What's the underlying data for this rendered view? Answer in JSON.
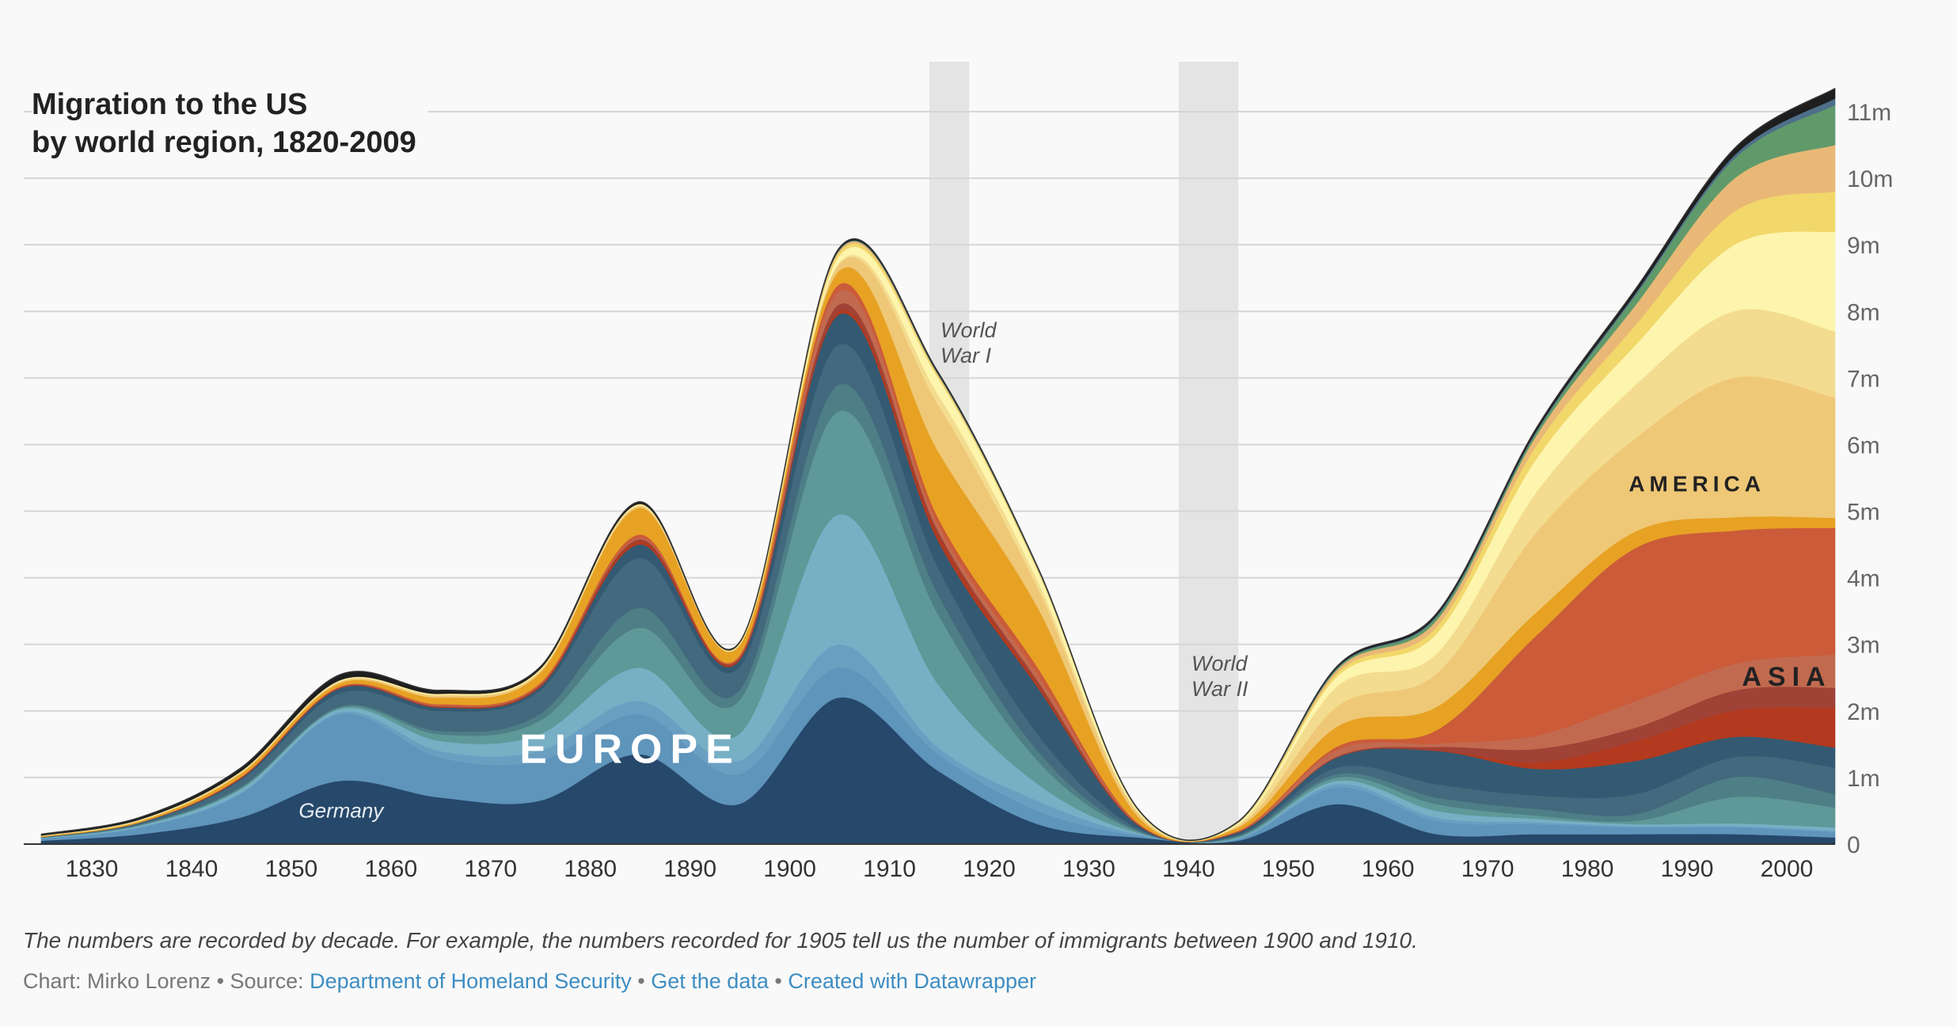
{
  "title": {
    "line1": "Migration to the US",
    "line2": "by world region, 1820-2009"
  },
  "note": "The numbers are recorded by decade. For example, the numbers recorded for 1905 tell us the number of immigrants between 1900 and 1910.",
  "byline": {
    "prefix": "Chart: Mirko Lorenz • Source: ",
    "source_link": "Department of Homeland Security",
    "sep1": " • ",
    "data_link": "Get the data",
    "sep2": " • ",
    "made_link": "Created with Datawrapper"
  },
  "chart_data": {
    "type": "area",
    "x": [
      1825,
      1835,
      1845,
      1855,
      1865,
      1875,
      1885,
      1895,
      1905,
      1915,
      1925,
      1935,
      1945,
      1955,
      1965,
      1975,
      1985,
      1995,
      2005
    ],
    "xticks": [
      "1830",
      "1840",
      "1850",
      "1860",
      "1870",
      "1880",
      "1890",
      "1900",
      "1910",
      "1920",
      "1930",
      "1940",
      "1950",
      "1960",
      "1970",
      "1980",
      "1990",
      "2000"
    ],
    "ylim": [
      0,
      11800000
    ],
    "yticks": [
      {
        "v": 0,
        "label": "0"
      },
      {
        "v": 1000000,
        "label": "1m"
      },
      {
        "v": 2000000,
        "label": "2m"
      },
      {
        "v": 3000000,
        "label": "3m"
      },
      {
        "v": 4000000,
        "label": "4m"
      },
      {
        "v": 5000000,
        "label": "5m"
      },
      {
        "v": 6000000,
        "label": "6m"
      },
      {
        "v": 7000000,
        "label": "7m"
      },
      {
        "v": 8000000,
        "label": "8m"
      },
      {
        "v": 9000000,
        "label": "9m"
      },
      {
        "v": 10000000,
        "label": "10m"
      },
      {
        "v": 11000000,
        "label": "11m"
      }
    ],
    "shading": [
      {
        "from": 1914,
        "to": 1918,
        "label1": "World",
        "label2": "War I"
      },
      {
        "from": 1939,
        "to": 1945,
        "label1": "World",
        "label2": "War II"
      }
    ],
    "series": [
      {
        "color": "#26486a",
        "values": [
          50000,
          150000,
          400000,
          950000,
          700000,
          650000,
          1350000,
          600000,
          2200000,
          1100000,
          300000,
          100000,
          50000,
          600000,
          150000,
          150000,
          150000,
          150000,
          100000
        ]
      },
      {
        "color": "#5f94bb",
        "values": [
          30000,
          100000,
          350000,
          1000000,
          600000,
          600000,
          600000,
          450000,
          450000,
          250000,
          200000,
          30000,
          20000,
          250000,
          200000,
          150000,
          100000,
          100000,
          80000
        ]
      },
      {
        "color": "#6a9fc2",
        "values": [
          5000,
          10000,
          20000,
          30000,
          100000,
          150000,
          200000,
          200000,
          350000,
          100000,
          150000,
          20000,
          10000,
          50000,
          50000,
          30000,
          20000,
          20000,
          20000
        ]
      },
      {
        "color": "#77afc5",
        "values": [
          5000,
          20000,
          50000,
          50000,
          150000,
          250000,
          500000,
          400000,
          1950000,
          950000,
          250000,
          20000,
          10000,
          50000,
          100000,
          50000,
          30000,
          40000,
          50000
        ]
      },
      {
        "color": "#5f9898",
        "values": [
          5000,
          10000,
          20000,
          20000,
          100000,
          200000,
          600000,
          500000,
          1550000,
          1050000,
          350000,
          20000,
          20000,
          50000,
          100000,
          50000,
          50000,
          400000,
          300000
        ]
      },
      {
        "color": "#4e7e86",
        "values": [
          2000,
          10000,
          20000,
          20000,
          50000,
          100000,
          300000,
          150000,
          400000,
          300000,
          150000,
          20000,
          10000,
          50000,
          100000,
          100000,
          100000,
          300000,
          200000
        ]
      },
      {
        "color": "#43697e",
        "values": [
          5000,
          20000,
          100000,
          200000,
          300000,
          350000,
          750000,
          350000,
          600000,
          400000,
          250000,
          30000,
          20000,
          100000,
          200000,
          200000,
          300000,
          300000,
          400000
        ]
      },
      {
        "color": "#335a72",
        "values": [
          3000,
          10000,
          20000,
          70000,
          50000,
          50000,
          200000,
          100000,
          450000,
          400000,
          700000,
          50000,
          30000,
          150000,
          500000,
          400000,
          500000,
          300000,
          300000
        ]
      },
      {
        "color": "#b33a1f",
        "values": [
          0,
          0,
          10000,
          10000,
          10000,
          20000,
          50000,
          20000,
          50000,
          100000,
          50000,
          10000,
          5000,
          5000,
          10000,
          100000,
          300000,
          400000,
          600000
        ]
      },
      {
        "color": "#a04236",
        "values": [
          0,
          0,
          5000,
          5000,
          10000,
          10000,
          30000,
          20000,
          100000,
          50000,
          50000,
          5000,
          5000,
          10000,
          50000,
          200000,
          200000,
          300000,
          300000
        ]
      },
      {
        "color": "#c26a4f",
        "values": [
          0,
          0,
          5000,
          5000,
          10000,
          10000,
          20000,
          10000,
          200000,
          100000,
          100000,
          10000,
          5000,
          100000,
          50000,
          200000,
          400000,
          400000,
          500000
        ]
      },
      {
        "color": "#cb5b39",
        "values": [
          0,
          0,
          5000,
          10000,
          20000,
          20000,
          50000,
          20000,
          100000,
          100000,
          100000,
          10000,
          10000,
          50000,
          200000,
          1500000,
          2300000,
          2000000,
          1900000
        ]
      },
      {
        "color": "#e7a224",
        "values": [
          10000,
          20000,
          50000,
          50000,
          100000,
          150000,
          400000,
          150000,
          200000,
          1000000,
          900000,
          100000,
          50000,
          300000,
          350000,
          350000,
          250000,
          200000,
          150000
        ]
      },
      {
        "color": "#efc877",
        "values": [
          5000,
          10000,
          20000,
          20000,
          30000,
          30000,
          30000,
          10000,
          100000,
          700000,
          300000,
          50000,
          20000,
          300000,
          500000,
          1200000,
          1400000,
          2100000,
          1800000
        ]
      },
      {
        "color": "#f3dc8f",
        "values": [
          5000,
          10000,
          10000,
          10000,
          10000,
          10000,
          10000,
          10000,
          20000,
          150000,
          100000,
          20000,
          20000,
          300000,
          300000,
          600000,
          800000,
          1000000,
          1000000
        ]
      },
      {
        "color": "#fdf4ad",
        "values": [
          2000,
          5000,
          5000,
          10000,
          10000,
          10000,
          10000,
          5000,
          100000,
          250000,
          150000,
          20000,
          20000,
          150000,
          300000,
          500000,
          600000,
          1000000,
          1500000
        ]
      },
      {
        "color": "#f2d86a",
        "values": [
          0,
          0,
          0,
          0,
          5000,
          5000,
          5000,
          5000,
          50000,
          30000,
          20000,
          5000,
          5000,
          50000,
          100000,
          200000,
          300000,
          500000,
          600000
        ]
      },
      {
        "color": "#e9b876",
        "values": [
          0,
          0,
          0,
          5000,
          5000,
          5000,
          5000,
          5000,
          30000,
          20000,
          10000,
          5000,
          5000,
          50000,
          100000,
          150000,
          300000,
          500000,
          700000
        ]
      },
      {
        "color": "#609a6a",
        "values": [
          0,
          0,
          0,
          0,
          0,
          0,
          0,
          0,
          10000,
          10000,
          10000,
          5000,
          5000,
          20000,
          50000,
          50000,
          150000,
          300000,
          600000
        ]
      },
      {
        "color": "#4f6f8a",
        "values": [
          0,
          0,
          0,
          0,
          0,
          0,
          0,
          0,
          5000,
          5000,
          5000,
          2000,
          2000,
          10000,
          20000,
          20000,
          30000,
          50000,
          100000
        ]
      },
      {
        "color": "#1e1e1e",
        "values": [
          20000,
          30000,
          50000,
          80000,
          50000,
          30000,
          30000,
          10000,
          20000,
          20000,
          10000,
          5000,
          5000,
          20000,
          30000,
          40000,
          60000,
          100000,
          150000
        ]
      }
    ],
    "annotations": [
      {
        "text": "EUROPE",
        "x": 1884,
        "y": 1220000,
        "size": 52,
        "color": "#ffffff",
        "weight": "bold",
        "spacing": 10
      },
      {
        "text": "Germany",
        "x": 1855,
        "y": 400000,
        "size": 26,
        "color": "#e8eef4",
        "italic": true
      },
      {
        "text": "AMERICA",
        "x": 1991,
        "y": 5300000,
        "size": 28,
        "color": "#222222",
        "weight": "bold",
        "spacing": 6
      },
      {
        "text": "ASIA",
        "x": 2000,
        "y": 2380000,
        "size": 34,
        "color": "#222222",
        "weight": "bold",
        "spacing": 8
      }
    ]
  }
}
